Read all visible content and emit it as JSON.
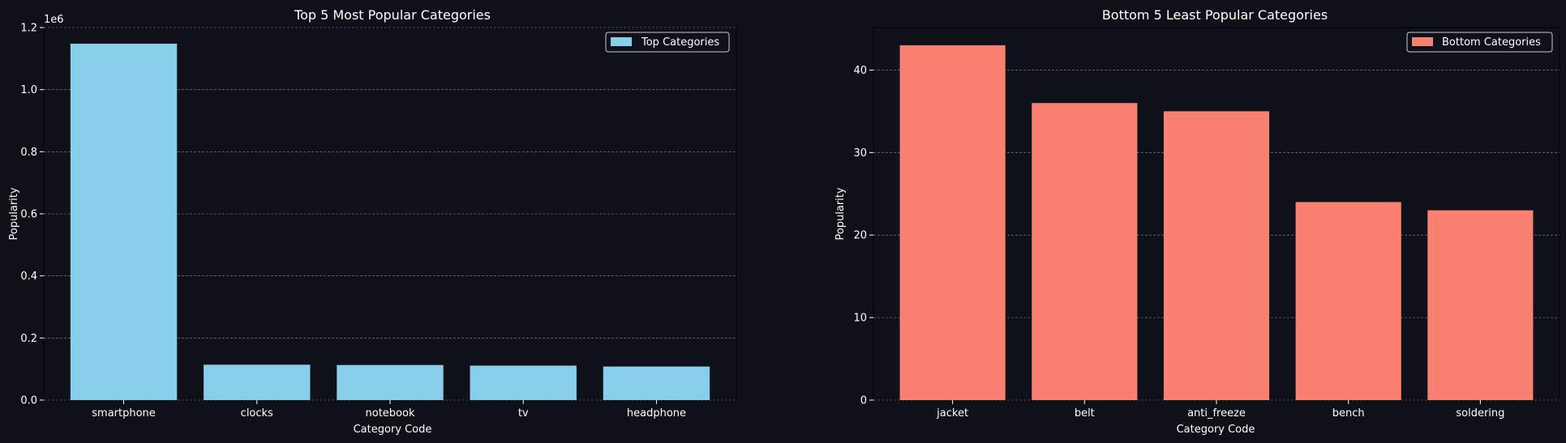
{
  "figure": {
    "background": "#0e1117",
    "axes_background": "#0e111a",
    "text_color": "#ffffff",
    "grid_color": "#bbbbbb"
  },
  "chart_data": [
    {
      "type": "bar",
      "title": "Top 5 Most Popular Categories",
      "xlabel": "Category Code",
      "ylabel": "Popularity",
      "offset_label": "1e6",
      "categories": [
        "smartphone",
        "clocks",
        "notebook",
        "tv",
        "headphone"
      ],
      "series": [
        {
          "name": "Top Categories",
          "values": [
            1.148,
            0.114,
            0.113,
            0.111,
            0.108
          ],
          "color": "#87ceeb"
        }
      ],
      "ylim": [
        0,
        1.2
      ],
      "yticks": [
        0.0,
        0.2,
        0.4,
        0.6,
        0.8,
        1.0,
        1.2
      ],
      "ytick_labels": [
        "0.0",
        "0.2",
        "0.4",
        "0.6",
        "0.8",
        "1.0",
        "1.2"
      ],
      "grid": "y-dashed",
      "legend": "top-right"
    },
    {
      "type": "bar",
      "title": "Bottom 5 Least Popular Categories",
      "xlabel": "Category Code",
      "ylabel": "Popularity",
      "offset_label": "",
      "categories": [
        "jacket",
        "belt",
        "anti_freeze",
        "bench",
        "soldering"
      ],
      "series": [
        {
          "name": "Bottom Categories",
          "values": [
            43,
            36,
            35,
            24,
            23
          ],
          "color": "#fa8072"
        }
      ],
      "ylim": [
        0,
        45.15
      ],
      "yticks": [
        0,
        10,
        20,
        30,
        40
      ],
      "ytick_labels": [
        "0",
        "10",
        "20",
        "30",
        "40"
      ],
      "grid": "y-dashed",
      "legend": "top-right"
    }
  ]
}
